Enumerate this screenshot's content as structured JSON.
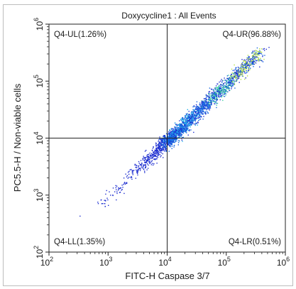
{
  "chart_data": {
    "type": "scatter",
    "title": "Doxycycline1 : All Events",
    "xlabel": "FITC-H Caspase 3/7",
    "ylabel": "PC5.5-H / Non-viable cells",
    "xscale": "log",
    "yscale": "log",
    "xlim": [
      100,
      1000000
    ],
    "ylim": [
      100,
      1000000
    ],
    "x_ticks": [
      {
        "value": 100,
        "base": "10",
        "exp": "2"
      },
      {
        "value": 1000,
        "base": "10",
        "exp": "3"
      },
      {
        "value": 10000,
        "base": "10",
        "exp": "4"
      },
      {
        "value": 100000,
        "base": "10",
        "exp": "5"
      },
      {
        "value": 1000000,
        "base": "10",
        "exp": "6"
      }
    ],
    "y_ticks": [
      {
        "value": 100,
        "base": "10",
        "exp": "2"
      },
      {
        "value": 1000,
        "base": "10",
        "exp": "3"
      },
      {
        "value": 10000,
        "base": "10",
        "exp": "4"
      },
      {
        "value": 100000,
        "base": "10",
        "exp": "5"
      },
      {
        "value": 1000000,
        "base": "10",
        "exp": "6"
      }
    ],
    "gate": {
      "x": 10000,
      "y": 10000
    },
    "quadrants": [
      {
        "id": "UL",
        "label": "Q4-UL(1.26%)",
        "percent": 1.26,
        "position": "top-left"
      },
      {
        "id": "UR",
        "label": "Q4-UR(96.88%)",
        "percent": 96.88,
        "position": "top-right"
      },
      {
        "id": "LL",
        "label": "Q4-LL(1.35%)",
        "percent": 1.35,
        "position": "bottom-left"
      },
      {
        "id": "LR",
        "label": "Q4-LR(0.51%)",
        "percent": 0.51,
        "position": "bottom-right"
      }
    ],
    "grid": false,
    "density_colors": [
      "#1f2fd0",
      "#1565e0",
      "#20b0e8",
      "#3fd0a0",
      "#b0e040"
    ]
  }
}
